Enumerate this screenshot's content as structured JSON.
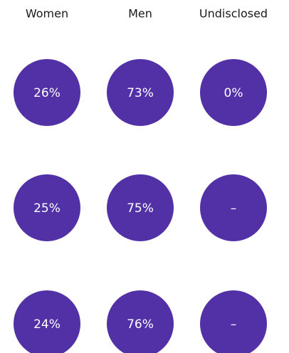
{
  "table": {
    "header": [
      "Women",
      "Men",
      "Undisclosed"
    ],
    "rows": [
      [
        "26%",
        "73%",
        "0%"
      ],
      [
        "25%",
        "75%",
        "–"
      ],
      [
        "24%",
        "76%",
        "–"
      ]
    ]
  }
}
